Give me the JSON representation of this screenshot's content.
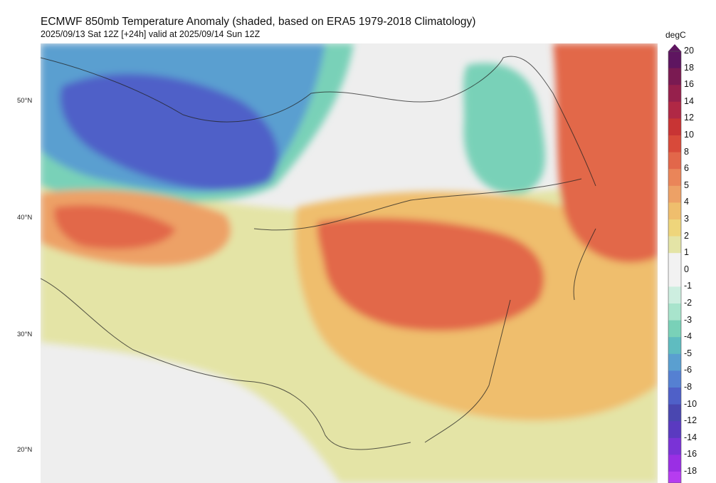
{
  "title": "ECMWF 850mb Temperature Anomaly (shaded, based on ERA5 1979-2018 Climatology)",
  "subtitle": "2025/09/13 Sat 12Z [+24h] valid at 2025/09/14 Sun 12Z",
  "units": "degC",
  "lat_labels": [
    "50°N",
    "40°N",
    "30°N",
    "20°N"
  ],
  "colorbar": {
    "levels": [
      "20",
      "18",
      "16",
      "14",
      "12",
      "10",
      "8",
      "6",
      "5",
      "4",
      "3",
      "2",
      "1",
      "0",
      "-1",
      "-2",
      "-3",
      "-4",
      "-5",
      "-6",
      "-8",
      "-10",
      "-12",
      "-14",
      "-16",
      "-18"
    ],
    "colors": [
      "#5e1560",
      "#7a1a52",
      "#96204c",
      "#b02845",
      "#c83434",
      "#d84a3a",
      "#e2674a",
      "#ea8559",
      "#eda166",
      "#efbe6d",
      "#eed57b",
      "#e4e4a6",
      "#f2f2f2",
      "#f2f2f2",
      "#cdeee0",
      "#a8e4cc",
      "#79d1b8",
      "#5fbcc0",
      "#5a9fd0",
      "#5580d2",
      "#4f60c8",
      "#4a47b0",
      "#5a3ac0",
      "#7a33d6",
      "#9a2fe4",
      "#b63cf0"
    ]
  }
}
